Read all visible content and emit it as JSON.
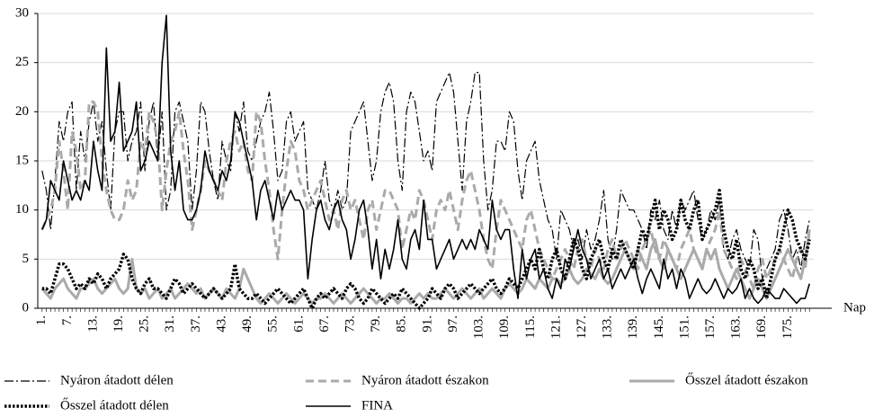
{
  "chart_data": {
    "type": "line",
    "x_label": "Nap",
    "x": [
      1,
      2,
      3,
      4,
      5,
      6,
      7,
      8,
      9,
      10,
      11,
      12,
      13,
      14,
      15,
      16,
      17,
      18,
      19,
      20,
      21,
      22,
      23,
      24,
      25,
      26,
      27,
      28,
      29,
      30,
      31,
      32,
      33,
      34,
      35,
      36,
      37,
      38,
      39,
      40,
      41,
      42,
      43,
      44,
      45,
      46,
      47,
      48,
      49,
      50,
      51,
      52,
      53,
      54,
      55,
      56,
      57,
      58,
      59,
      60,
      61,
      62,
      63,
      64,
      65,
      66,
      67,
      68,
      69,
      70,
      71,
      72,
      73,
      74,
      75,
      76,
      77,
      78,
      79,
      80,
      81,
      82,
      83,
      84,
      85,
      86,
      87,
      88,
      89,
      90,
      91,
      92,
      93,
      94,
      95,
      96,
      97,
      98,
      99,
      100,
      101,
      102,
      103,
      104,
      105,
      106,
      107,
      108,
      109,
      110,
      111,
      112,
      113,
      114,
      115,
      116,
      117,
      118,
      119,
      120,
      121,
      122,
      123,
      124,
      125,
      126,
      127,
      128,
      129,
      130,
      131,
      132,
      133,
      134,
      135,
      136,
      137,
      138,
      139,
      140,
      141,
      142,
      143,
      144,
      145,
      146,
      147,
      148,
      149,
      150,
      151,
      152,
      153,
      154,
      155,
      156,
      157,
      158,
      159,
      160,
      161,
      162,
      163,
      164,
      165,
      166,
      167,
      168,
      169,
      170,
      171,
      172,
      173,
      174,
      175,
      176,
      177,
      178,
      179,
      180
    ],
    "xlim": [
      0,
      181
    ],
    "xticks": [
      {
        "value": 1,
        "label": "1."
      },
      {
        "value": 7,
        "label": "7."
      },
      {
        "value": 13,
        "label": "13."
      },
      {
        "value": 19,
        "label": "19."
      },
      {
        "value": 25,
        "label": "25."
      },
      {
        "value": 31,
        "label": "31."
      },
      {
        "value": 37,
        "label": "37."
      },
      {
        "value": 43,
        "label": "43."
      },
      {
        "value": 49,
        "label": "49."
      },
      {
        "value": 55,
        "label": "55."
      },
      {
        "value": 61,
        "label": "61."
      },
      {
        "value": 67,
        "label": "67."
      },
      {
        "value": 73,
        "label": "73."
      },
      {
        "value": 79,
        "label": "79."
      },
      {
        "value": 85,
        "label": "85."
      },
      {
        "value": 91,
        "label": "91."
      },
      {
        "value": 97,
        "label": "97."
      },
      {
        "value": 103,
        "label": "103."
      },
      {
        "value": 109,
        "label": "109."
      },
      {
        "value": 115,
        "label": "115."
      },
      {
        "value": 121,
        "label": "121."
      },
      {
        "value": 127,
        "label": "127."
      },
      {
        "value": 133,
        "label": "133."
      },
      {
        "value": 139,
        "label": "139."
      },
      {
        "value": 145,
        "label": "145."
      },
      {
        "value": 151,
        "label": "151."
      },
      {
        "value": 157,
        "label": "157."
      },
      {
        "value": 163,
        "label": "163."
      },
      {
        "value": 169,
        "label": "169."
      },
      {
        "value": 175,
        "label": "175."
      }
    ],
    "ylim": [
      0,
      30
    ],
    "yticks": [
      0,
      5,
      10,
      15,
      20,
      25,
      30
    ],
    "grid": true,
    "legend": "bottom",
    "series": [
      {
        "name": "Nyáron átadott délen",
        "color": "#000000",
        "style": "dashdot",
        "values": [
          14,
          12,
          8,
          13,
          19,
          17,
          20,
          21,
          12,
          18,
          15,
          19,
          21,
          17,
          19,
          14,
          10,
          18,
          20,
          20,
          15,
          17,
          18,
          21,
          14,
          19,
          21,
          15,
          20,
          10,
          12,
          20,
          21,
          19,
          17,
          10,
          14,
          21,
          20,
          16,
          13,
          11,
          17,
          15,
          14,
          20,
          18,
          21,
          16,
          15,
          17,
          19,
          20,
          22,
          18,
          13,
          14,
          19,
          20,
          17,
          18,
          19,
          12,
          11,
          10,
          12,
          15,
          11,
          10,
          12,
          10,
          11,
          18,
          19,
          20,
          21,
          17,
          13,
          15,
          20,
          22,
          23,
          21,
          15,
          12,
          20,
          22,
          21,
          18,
          15,
          16,
          14,
          21,
          22,
          23,
          24,
          22,
          17,
          12,
          19,
          21,
          24,
          24,
          15,
          10,
          12,
          17,
          17,
          16,
          20,
          19,
          14,
          11,
          15,
          16,
          17,
          13,
          11,
          9,
          8,
          5,
          10,
          9,
          8,
          6,
          7,
          5,
          8,
          6,
          7,
          9,
          12,
          7,
          5,
          8,
          12,
          11,
          10,
          10,
          9,
          8,
          6,
          10,
          9,
          11,
          8,
          7,
          10,
          8,
          11,
          10,
          11,
          12,
          9,
          7,
          8,
          10,
          9,
          11,
          6,
          5,
          7,
          8,
          6,
          5,
          4,
          8,
          7,
          3,
          4,
          5,
          6,
          9,
          10,
          8,
          5,
          6,
          4,
          7,
          9
        ]
      },
      {
        "name": "Nyáron átadott északon",
        "color": "#aaaaaa",
        "style": "dashed",
        "values": [
          8,
          9,
          10,
          12,
          17,
          14,
          10,
          18,
          16,
          12,
          13,
          21,
          21,
          20,
          15,
          12,
          10,
          9,
          9,
          10,
          13,
          11,
          12,
          17,
          16,
          20,
          19,
          17,
          10,
          14,
          17,
          18,
          20,
          16,
          13,
          8,
          10,
          12,
          15,
          14,
          13,
          12,
          11,
          15,
          17,
          18,
          16,
          17,
          14,
          13,
          20,
          19,
          15,
          12,
          8,
          5,
          10,
          14,
          17,
          16,
          13,
          12,
          10,
          11,
          12,
          13,
          11,
          9,
          10,
          8,
          11,
          12,
          10,
          11,
          9,
          7,
          10,
          11,
          8,
          10,
          12,
          12,
          11,
          10,
          6,
          8,
          10,
          9,
          12,
          11,
          9,
          7,
          10,
          11,
          10,
          12,
          10,
          8,
          11,
          13,
          14,
          12,
          10,
          7,
          5,
          4,
          8,
          11,
          10,
          9,
          8,
          7,
          6,
          9,
          10,
          8,
          6,
          5,
          4,
          3,
          4,
          5,
          6,
          5,
          4,
          6,
          7,
          5,
          4,
          6,
          5,
          4,
          6,
          7,
          5,
          6,
          7,
          6,
          5,
          4,
          6,
          7,
          8,
          6,
          5,
          7,
          6,
          5,
          4,
          6,
          7,
          8,
          6,
          5,
          4,
          6,
          7,
          8,
          10,
          6,
          5,
          4,
          3,
          5,
          4,
          3,
          2,
          4,
          5,
          3,
          4,
          5,
          6,
          5,
          4,
          3,
          5,
          6,
          4,
          8
        ]
      },
      {
        "name": "Ősszel átadott északon",
        "color": "#aaaaaa",
        "style": "solid",
        "values": [
          2,
          1.5,
          1,
          2,
          2.5,
          3,
          2,
          1.5,
          1,
          2,
          2,
          2.5,
          3,
          2,
          1.5,
          2,
          2.5,
          3,
          2,
          1.5,
          2,
          5,
          2,
          1.5,
          2,
          1,
          1.5,
          2,
          1,
          1.5,
          2,
          1,
          1.5,
          2,
          2.5,
          2,
          1.5,
          2,
          1,
          1.5,
          2,
          1.5,
          1,
          2,
          1.5,
          1,
          2,
          4,
          3,
          2,
          1,
          0.5,
          1,
          1.5,
          1,
          0.5,
          1,
          1.5,
          1,
          0.5,
          1,
          1.5,
          1,
          0.5,
          1,
          1,
          1.5,
          1,
          0.5,
          1,
          1.5,
          1,
          0.5,
          1,
          1.5,
          2,
          1.5,
          1,
          0.5,
          1,
          1,
          1.5,
          1,
          0.5,
          1,
          1,
          0.5,
          1,
          1.5,
          1,
          1.5,
          1,
          1,
          1.5,
          2,
          1.5,
          1,
          1.5,
          2,
          1.5,
          1,
          1.5,
          2,
          1,
          1.5,
          2,
          1.5,
          1,
          2,
          2.5,
          2,
          1.5,
          2,
          3,
          2.5,
          2,
          3,
          2.5,
          2,
          3,
          3,
          2.5,
          3,
          4,
          3,
          2.5,
          3,
          4,
          3.5,
          3,
          4,
          3,
          2.5,
          3,
          4,
          5,
          6,
          5,
          4,
          6,
          5,
          4,
          6,
          7,
          5,
          4,
          6,
          5,
          4,
          3,
          4,
          5,
          6,
          5,
          4,
          6,
          5,
          6,
          4,
          3,
          2,
          3,
          4,
          3,
          2,
          1,
          2,
          3,
          2,
          1,
          2,
          3,
          4,
          5,
          6,
          5,
          4,
          3,
          5,
          8
        ]
      },
      {
        "name": "Ősszel átadott délen",
        "color": "#000000",
        "style": "dotted",
        "values": [
          2,
          2,
          1.5,
          3,
          4.5,
          4.5,
          4,
          3,
          2,
          2.5,
          2,
          3,
          2.5,
          3.5,
          3,
          2,
          3,
          3.5,
          4,
          5.5,
          5,
          3,
          2,
          1.5,
          2.5,
          3,
          2,
          2,
          1.5,
          1,
          2,
          3,
          2.5,
          1.5,
          2,
          2.5,
          2,
          1.5,
          1,
          1.5,
          2,
          1.5,
          1,
          1.5,
          2,
          4.5,
          2,
          1.5,
          1,
          1,
          1.5,
          1,
          0.5,
          1,
          1.5,
          2,
          1.5,
          1,
          0.5,
          1,
          1.5,
          2,
          1,
          0,
          1,
          1.5,
          1,
          1.5,
          2,
          1.5,
          1,
          2,
          2.5,
          2,
          1,
          0.5,
          1,
          2,
          1.5,
          1,
          0.5,
          1,
          1.5,
          1,
          2,
          1.5,
          1,
          0.5,
          0,
          0.5,
          1,
          2,
          1.5,
          1,
          2,
          2.5,
          2,
          1,
          1.5,
          2,
          2.5,
          2,
          1.5,
          2,
          2.5,
          3,
          2,
          1.5,
          2,
          3,
          2.5,
          2,
          3,
          4,
          5,
          4,
          6,
          4,
          3,
          5,
          6,
          4,
          3,
          5,
          7,
          6,
          4,
          3,
          5,
          6,
          7,
          5,
          4,
          6,
          5,
          7,
          6,
          5,
          4,
          6,
          8,
          7,
          9,
          11,
          8,
          10,
          9,
          7,
          8,
          11,
          9,
          8,
          10,
          11,
          7,
          8,
          9,
          10,
          12,
          8,
          6,
          5,
          7,
          4,
          3,
          5,
          4,
          2,
          3,
          1,
          3,
          5,
          6,
          8,
          10,
          9,
          7,
          6,
          5,
          7
        ]
      },
      {
        "name": "FINA",
        "color": "#000000",
        "style": "solid",
        "values": [
          8,
          9,
          13,
          12,
          11,
          15,
          13,
          11,
          12,
          11,
          13,
          12,
          17,
          14,
          12,
          26.5,
          17,
          18,
          23,
          16,
          17,
          18,
          21,
          14,
          15,
          17,
          16,
          15,
          25,
          29.8,
          16,
          12,
          15,
          10,
          9,
          9,
          10,
          12,
          16,
          14,
          13,
          12,
          14,
          13,
          15,
          20,
          19,
          17,
          15,
          13,
          9,
          12,
          13,
          11,
          9,
          12,
          10,
          11,
          12,
          11,
          11,
          10,
          3,
          7,
          10,
          11,
          9,
          8,
          10,
          11,
          9,
          8,
          5,
          7,
          10,
          11,
          8,
          4,
          7,
          3,
          6,
          4,
          6,
          9,
          5,
          4,
          7,
          8,
          6,
          11,
          7,
          7,
          4,
          5,
          6,
          7,
          5,
          6,
          7,
          6,
          7,
          6,
          8,
          7,
          6,
          11,
          8,
          7,
          8,
          8,
          4,
          1,
          6,
          3,
          5,
          6,
          3,
          4,
          2,
          1,
          3,
          2,
          5,
          4,
          6,
          8,
          6,
          5,
          3,
          4,
          5,
          3,
          4,
          2,
          3,
          4,
          3,
          4,
          5,
          3,
          1.5,
          3,
          4,
          3,
          2,
          5,
          3,
          4,
          2,
          4,
          3,
          1,
          2,
          3,
          2,
          1.5,
          2,
          3,
          2,
          1,
          2,
          1.5,
          2,
          3,
          1,
          2,
          1,
          0.5,
          1,
          2,
          1.5,
          1,
          1,
          2,
          1.5,
          1,
          0.5,
          1,
          1,
          2.5
        ]
      }
    ]
  }
}
